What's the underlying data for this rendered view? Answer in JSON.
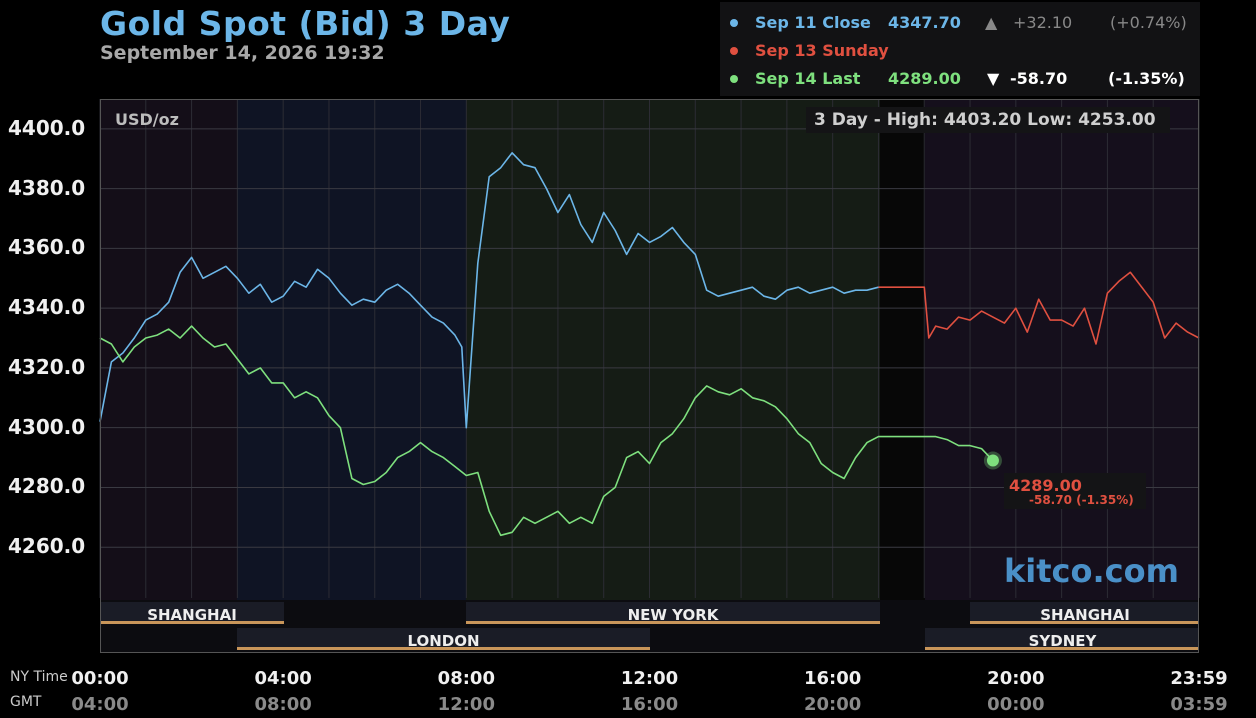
{
  "header": {
    "title": "Gold Spot (Bid) 3 Day",
    "subtitle": "September 14, 2026 19:32"
  },
  "legend": [
    {
      "label": "Sep 11 Close",
      "price": "4347.70",
      "arrow": "▲",
      "change": "+32.10",
      "pct": "(+0.74%)",
      "color": "#6cb6e8"
    },
    {
      "label": "Sep 13 Sunday",
      "price": "",
      "arrow": "",
      "change": "",
      "pct": "",
      "color": "#e05040"
    },
    {
      "label": "Sep 14 Last",
      "price": "4289.00",
      "arrow": "▼",
      "change": "-58.70",
      "pct": "(-1.35%)",
      "color": "#7ee07e"
    }
  ],
  "unit_label": "USD/oz",
  "high_low": "3 Day - High: 4403.20  Low: 4253.00",
  "brand": "kitco.com",
  "last_marker": {
    "value": "4289.00",
    "change": "-58.70 (-1.35%)"
  },
  "sessions": {
    "row1": [
      "SHANGHAI",
      "NEW YORK",
      "SHANGHAI"
    ],
    "row2": [
      "LONDON",
      "SYDNEY"
    ]
  },
  "axis_labels": {
    "ny_time": "NY Time",
    "gmt": "GMT"
  },
  "chart_data": {
    "type": "line",
    "ylim": [
      4243,
      4410
    ],
    "y_ticks": [
      "4400.0",
      "4380.0",
      "4360.0",
      "4340.0",
      "4320.0",
      "4300.0",
      "4280.0",
      "4260.0"
    ],
    "x_ticks_ny": [
      "00:00",
      "04:00",
      "08:00",
      "12:00",
      "16:00",
      "20:00",
      "23:59"
    ],
    "x_ticks_gmt": [
      "04:00",
      "08:00",
      "12:00",
      "16:00",
      "20:00",
      "00:00",
      "03:59"
    ],
    "series": [
      {
        "name": "Sep 11 Close",
        "color": "#6cb6e8",
        "x": [
          0,
          0.25,
          0.5,
          0.75,
          1,
          1.25,
          1.5,
          1.75,
          2,
          2.25,
          2.5,
          2.75,
          3,
          3.25,
          3.5,
          3.75,
          4,
          4.25,
          4.5,
          4.75,
          5,
          5.25,
          5.5,
          5.75,
          6,
          6.25,
          6.5,
          6.75,
          7,
          7.25,
          7.5,
          7.75,
          7.9,
          8,
          8.25,
          8.5,
          8.75,
          9,
          9.25,
          9.5,
          9.75,
          10,
          10.25,
          10.5,
          10.75,
          11,
          11.25,
          11.5,
          11.75,
          12,
          12.25,
          12.5,
          12.75,
          13,
          13.25,
          13.5,
          13.75,
          14,
          14.25,
          14.5,
          14.75,
          15,
          15.25,
          15.5,
          15.75,
          16,
          16.25,
          16.5,
          16.75,
          17
        ],
        "values": [
          4302,
          4322,
          4325,
          4330,
          4336,
          4338,
          4342,
          4352,
          4357,
          4350,
          4352,
          4354,
          4350,
          4345,
          4348,
          4342,
          4344,
          4349,
          4347,
          4353,
          4350,
          4345,
          4341,
          4343,
          4342,
          4346,
          4348,
          4345,
          4341,
          4337,
          4335,
          4331,
          4327,
          4300,
          4355,
          4384,
          4387,
          4392,
          4388,
          4387,
          4380,
          4372,
          4378,
          4368,
          4362,
          4372,
          4366,
          4358,
          4365,
          4362,
          4364,
          4367,
          4362,
          4358,
          4346,
          4344,
          4345,
          4346,
          4347,
          4344,
          4343,
          4346,
          4347,
          4345,
          4346,
          4347,
          4345,
          4346,
          4346,
          4347
        ]
      },
      {
        "name": "Sep 13 Sunday",
        "color": "#e05040",
        "x": [
          17,
          18,
          18.1,
          18.25,
          18.5,
          18.75,
          19,
          19.25,
          19.5,
          19.75,
          20,
          20.25,
          20.5,
          20.75,
          21,
          21.25,
          21.5,
          21.75,
          22,
          22.25,
          22.5,
          22.75,
          23,
          23.25,
          23.5,
          23.75,
          24
        ],
        "values": [
          4347,
          4347,
          4330,
          4334,
          4333,
          4337,
          4336,
          4339,
          4337,
          4335,
          4340,
          4332,
          4343,
          4336,
          4336,
          4334,
          4340,
          4328,
          4345,
          4349,
          4352,
          4347,
          4342,
          4330,
          4335,
          4332,
          4330
        ]
      },
      {
        "name": "Sep 14 Last",
        "color": "#7ee07e",
        "x": [
          0,
          0.25,
          0.5,
          0.75,
          1,
          1.25,
          1.5,
          1.75,
          2,
          2.25,
          2.5,
          2.75,
          3,
          3.25,
          3.5,
          3.75,
          4,
          4.25,
          4.5,
          4.75,
          5,
          5.25,
          5.5,
          5.75,
          6,
          6.25,
          6.5,
          6.75,
          7,
          7.25,
          7.5,
          7.75,
          8,
          8.25,
          8.5,
          8.75,
          9,
          9.25,
          9.5,
          9.75,
          10,
          10.25,
          10.5,
          10.75,
          11,
          11.25,
          11.5,
          11.75,
          12,
          12.25,
          12.5,
          12.75,
          13,
          13.25,
          13.5,
          13.75,
          14,
          14.25,
          14.5,
          14.75,
          15,
          15.25,
          15.5,
          15.75,
          16,
          16.25,
          16.5,
          16.75,
          17,
          17.5,
          18,
          18.25,
          18.5,
          18.75,
          19,
          19.25,
          19.5
        ],
        "values": [
          4330,
          4328,
          4322,
          4327,
          4330,
          4331,
          4333,
          4330,
          4334,
          4330,
          4327,
          4328,
          4323,
          4318,
          4320,
          4315,
          4315,
          4310,
          4312,
          4310,
          4304,
          4300,
          4283,
          4281,
          4282,
          4285,
          4290,
          4292,
          4295,
          4292,
          4290,
          4287,
          4284,
          4285,
          4272,
          4264,
          4265,
          4270,
          4268,
          4270,
          4272,
          4268,
          4270,
          4268,
          4277,
          4280,
          4290,
          4292,
          4288,
          4295,
          4298,
          4303,
          4310,
          4314,
          4312,
          4311,
          4313,
          4310,
          4309,
          4307,
          4303,
          4298,
          4295,
          4288,
          4285,
          4283,
          4290,
          4295,
          4297,
          4297,
          4297,
          4297,
          4296,
          4294,
          4294,
          4293,
          4289
        ]
      }
    ]
  }
}
